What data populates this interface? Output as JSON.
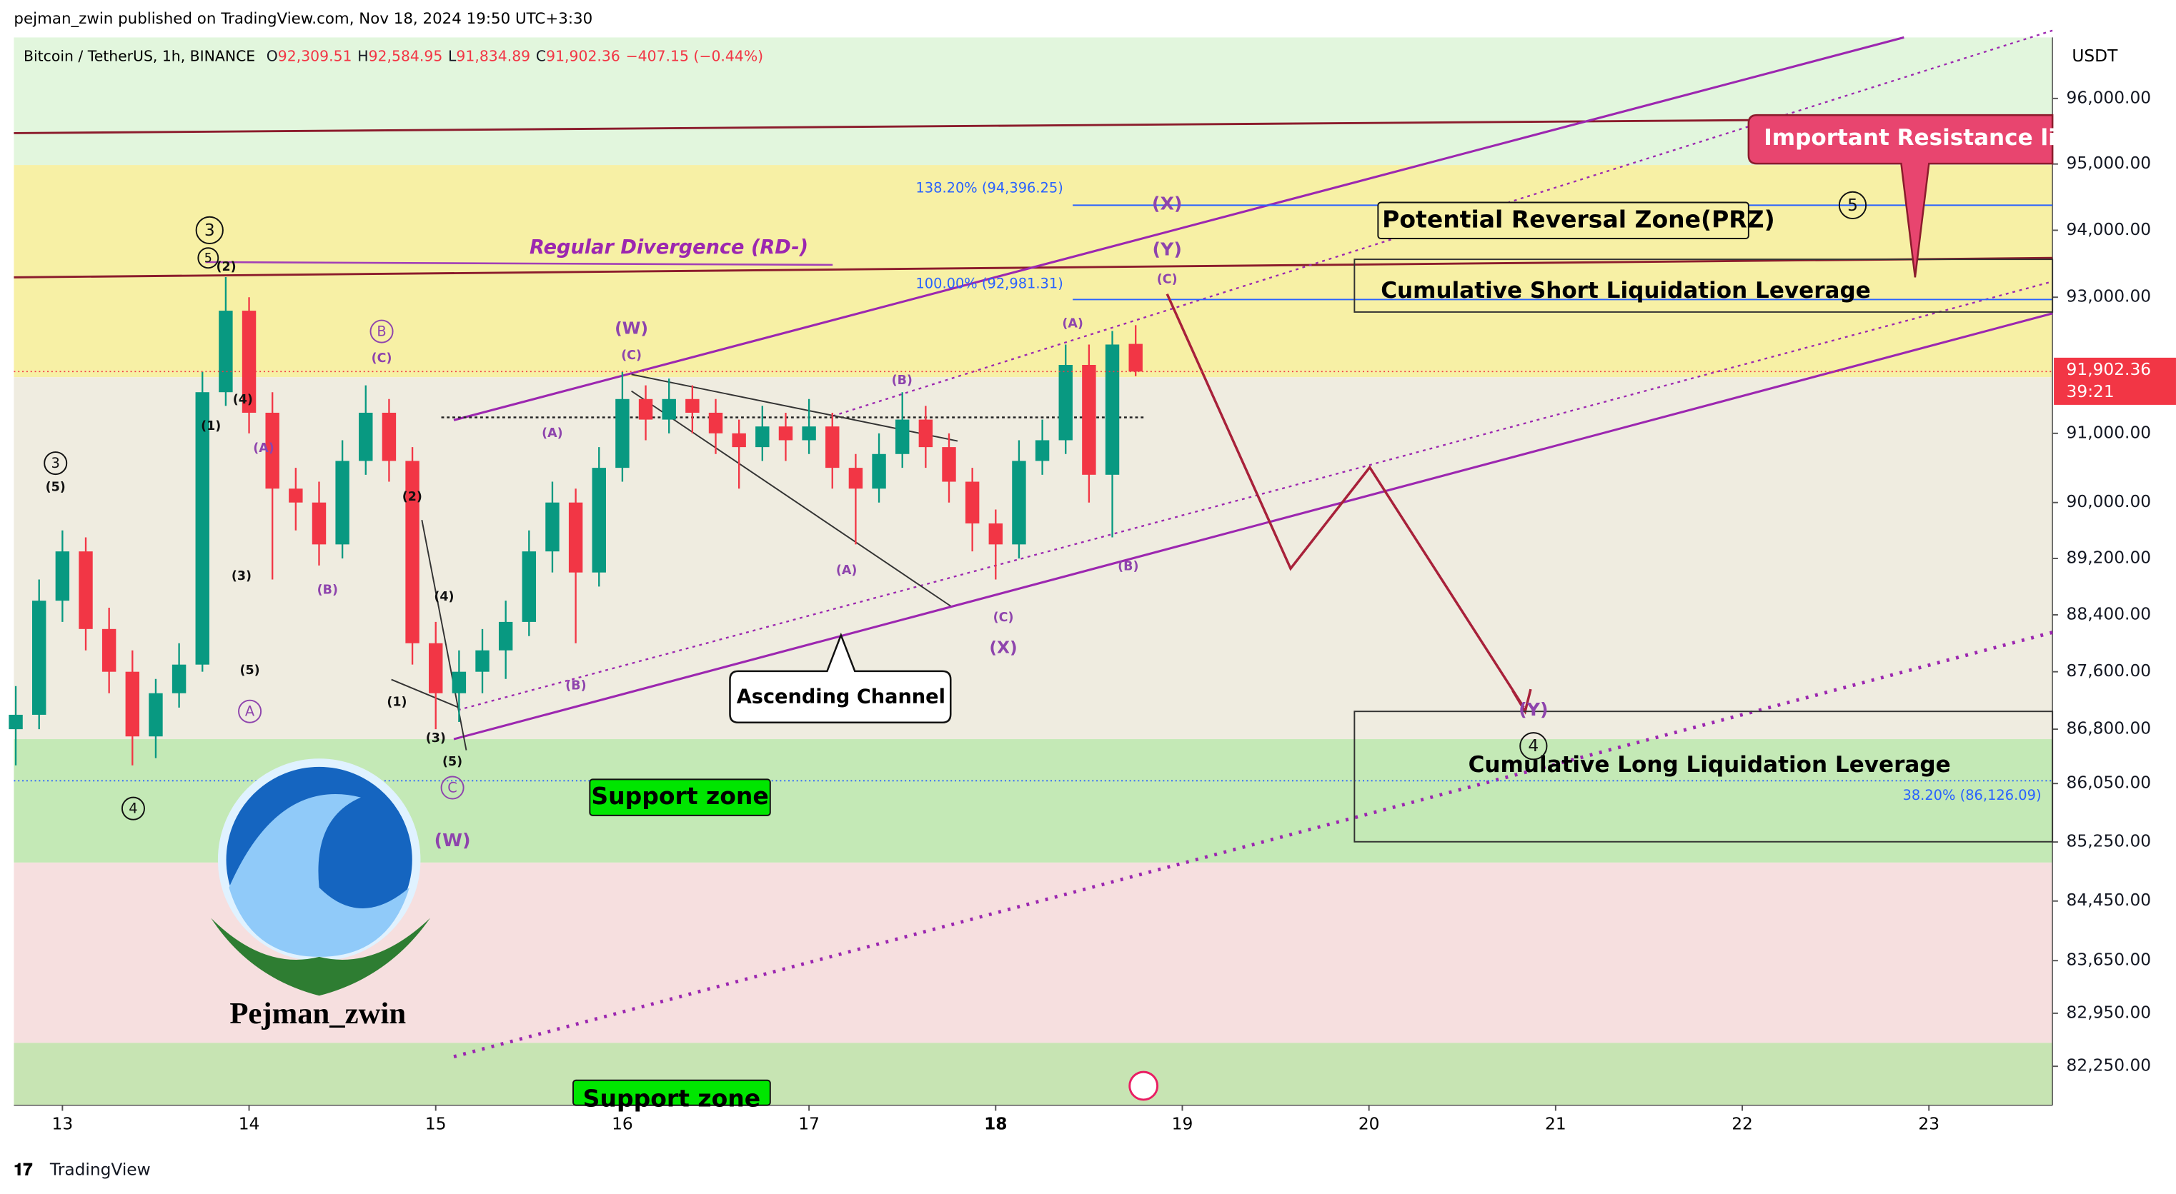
{
  "header": {
    "publisher": "pejman_zwin published on TradingView.com, Nov 18, 2024 19:50 UTC+3:30",
    "symbol": "Bitcoin / TetherUS, 1h, BINANCE",
    "ohlc": [
      {
        "key": "O",
        "value": "92,309.51"
      },
      {
        "key": "H",
        "value": "92,584.95"
      },
      {
        "key": "L",
        "value": "91,834.89"
      },
      {
        "key": "C",
        "value": "91,902.36"
      }
    ],
    "change": "−407.15 (−0.44%)"
  },
  "chart_data": {
    "type": "candlestick",
    "log": true,
    "currency": "USDT",
    "xlim": [
      12.74,
      23.662
    ],
    "xticks": [
      13,
      14,
      15,
      16,
      17,
      18,
      19,
      20,
      21,
      22,
      23
    ],
    "ylim": [
      81740,
      96940
    ],
    "yticks": [
      {
        "value": 96000,
        "label": "96,000.00"
      },
      {
        "value": 95000,
        "label": "95,000.00"
      },
      {
        "value": 94000,
        "label": "94,000.00"
      },
      {
        "value": 93000,
        "label": "93,000.00"
      },
      {
        "value": 91000,
        "label": "91,000.00"
      },
      {
        "value": 90000,
        "label": "90,000.00"
      },
      {
        "value": 89200,
        "label": "89,200.00"
      },
      {
        "value": 88400,
        "label": "88,400.00"
      },
      {
        "value": 87600,
        "label": "87,600.00"
      },
      {
        "value": 86800,
        "label": "86,800.00"
      },
      {
        "value": 86050,
        "label": "86,050.00"
      },
      {
        "value": 85250,
        "label": "85,250.00"
      },
      {
        "value": 84450,
        "label": "84,450.00"
      },
      {
        "value": 83650,
        "label": "83,650.00"
      },
      {
        "value": 82950,
        "label": "82,950.00"
      },
      {
        "value": 82250,
        "label": "82,250.00"
      }
    ],
    "up_color": "#089981",
    "down_color": "#f23645",
    "candles": [
      [
        12.75,
        86800,
        87400,
        86300,
        87000
      ],
      [
        12.875,
        87000,
        88900,
        86800,
        88600
      ],
      [
        13,
        88600,
        89600,
        88300,
        89300
      ],
      [
        13.125,
        89300,
        89500,
        87900,
        88200
      ],
      [
        13.25,
        88200,
        88500,
        87300,
        87600
      ],
      [
        13.375,
        87600,
        87900,
        86300,
        86700
      ],
      [
        13.5,
        86700,
        87500,
        86400,
        87300
      ],
      [
        13.625,
        87300,
        88000,
        87100,
        87700
      ],
      [
        13.75,
        87700,
        91900,
        87600,
        91600
      ],
      [
        13.875,
        91600,
        93300,
        91400,
        92800
      ],
      [
        14,
        92800,
        93000,
        91000,
        91300
      ],
      [
        14.125,
        91300,
        91600,
        88900,
        90200
      ],
      [
        14.25,
        90200,
        90500,
        89600,
        90000
      ],
      [
        14.375,
        90000,
        90300,
        89100,
        89400
      ],
      [
        14.5,
        89400,
        90900,
        89200,
        90600
      ],
      [
        14.625,
        90600,
        91700,
        90400,
        91300
      ],
      [
        14.75,
        91300,
        91500,
        90300,
        90600
      ],
      [
        14.875,
        90600,
        90800,
        87700,
        88000
      ],
      [
        15,
        88000,
        88300,
        86800,
        87300
      ],
      [
        15.125,
        87300,
        87900,
        86900,
        87600
      ],
      [
        15.25,
        87600,
        88200,
        87300,
        87900
      ],
      [
        15.375,
        87900,
        88600,
        87500,
        88300
      ],
      [
        15.5,
        88300,
        89600,
        88100,
        89300
      ],
      [
        15.625,
        89300,
        90300,
        89000,
        90000
      ],
      [
        15.75,
        90000,
        90200,
        88000,
        89000
      ],
      [
        15.875,
        89000,
        90800,
        88800,
        90500
      ],
      [
        16,
        90500,
        91900,
        90300,
        91500
      ],
      [
        16.125,
        91500,
        91700,
        90900,
        91200
      ],
      [
        16.25,
        91200,
        91800,
        91000,
        91500
      ],
      [
        16.375,
        91500,
        91700,
        91000,
        91300
      ],
      [
        16.5,
        91300,
        91500,
        90700,
        91000
      ],
      [
        16.625,
        91000,
        91200,
        90200,
        90800
      ],
      [
        16.75,
        90800,
        91400,
        90600,
        91100
      ],
      [
        16.875,
        91100,
        91300,
        90600,
        90900
      ],
      [
        17,
        90900,
        91500,
        90700,
        91100
      ],
      [
        17.125,
        91100,
        91300,
        90200,
        90500
      ],
      [
        17.25,
        90500,
        90700,
        89400,
        90200
      ],
      [
        17.375,
        90200,
        91000,
        90000,
        90700
      ],
      [
        17.5,
        90700,
        91600,
        90500,
        91200
      ],
      [
        17.625,
        91200,
        91400,
        90500,
        90800
      ],
      [
        17.75,
        90800,
        91000,
        90000,
        90300
      ],
      [
        17.875,
        90300,
        90500,
        89300,
        89700
      ],
      [
        18,
        89700,
        89900,
        88900,
        89400
      ],
      [
        18.125,
        89400,
        90900,
        89200,
        90600
      ],
      [
        18.25,
        90600,
        91200,
        90400,
        90900
      ],
      [
        18.375,
        90900,
        92300,
        90700,
        92000
      ],
      [
        18.5,
        92000,
        92300,
        90000,
        90400
      ],
      [
        18.625,
        90400,
        92500,
        89500,
        92300
      ],
      [
        18.75,
        92309.51,
        92584.95,
        91834.89,
        91902.36
      ]
    ],
    "price_tag": {
      "price": "91,902.36",
      "timer": "39:21"
    }
  },
  "drawings": {
    "divergence": "Regular Divergence (RD-)",
    "fib_138": "138.20% (94,396.25)",
    "fib_100": "100.00% (92,981.31)",
    "fib_382": "38.20% (86,126.09)",
    "prz": "Potential Reversal Zone(PRZ)",
    "short_liq": "Cumulative Short Liquidation Leverage",
    "long_liq": "Cumulative Long Liquidation Leverage",
    "support": "Support zone",
    "support_2": "Support zone",
    "channel": "Ascending Channel",
    "resistance": "Important Resistance line",
    "brand": "Pejman_zwin"
  },
  "annotations": [
    "3",
    "5",
    "(2)",
    "(4)",
    "(1)",
    "(3)",
    "(5)",
    "A",
    "4",
    "3",
    "(5)",
    "(A)",
    "(B)",
    "B",
    "(C)",
    "(2)",
    "(4)",
    "(1)",
    "(3)",
    "(5)",
    "C",
    "(W)",
    "(A)",
    "(B)",
    "(W)",
    "(C)",
    "(B)",
    "(A)",
    "(C)",
    "(X)",
    "(A)",
    "(B)",
    "(X)",
    "(Y)",
    "(C)",
    "5",
    "(Y)",
    "4"
  ],
  "footer": "TradingView"
}
